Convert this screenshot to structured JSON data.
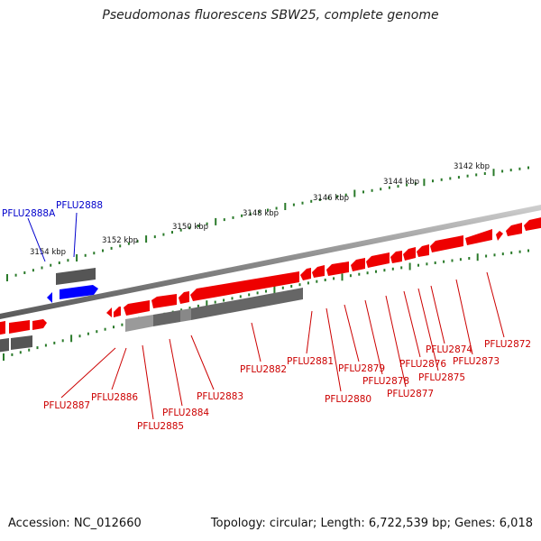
{
  "title": "Pseudomonas fluorescens SBW25, complete genome",
  "footer": {
    "accession": "Accession: NC_012660",
    "summary": "Topology: circular; Length: 6,722,539 bp; Genes: 6,018"
  },
  "colors": {
    "forward_gene": "#ff0000",
    "highlight_gene": "#0000ff",
    "rna_feature": "#555555",
    "tick_green": "#2a7a2a",
    "label_red": "#cc0000",
    "label_blue": "#0000cc",
    "backbone": "#888888"
  },
  "ruler": [
    "3142 kbp",
    "3144 kbp",
    "3146 kbp",
    "3148 kbp",
    "3150 kbp",
    "3152 kbp",
    "3154 kbp"
  ],
  "labels": {
    "PFLU2888A": "PFLU2888A",
    "PFLU2888": "PFLU2888",
    "PFLU2887": "PFLU2887",
    "PFLU2886": "PFLU2886",
    "PFLU2885": "PFLU2885",
    "PFLU2884": "PFLU2884",
    "PFLU2883": "PFLU2883",
    "PFLU2882": "PFLU2882",
    "PFLU2881": "PFLU2881",
    "PFLU2880": "PFLU2880",
    "PFLU2879": "PFLU2879",
    "PFLU2878": "PFLU2878",
    "PFLU2877": "PFLU2877",
    "PFLU2876": "PFLU2876",
    "PFLU2875": "PFLU2875",
    "PFLU2874": "PFLU2874",
    "PFLU2873": "PFLU2873",
    "PFLU2872": "PFLU2872"
  }
}
